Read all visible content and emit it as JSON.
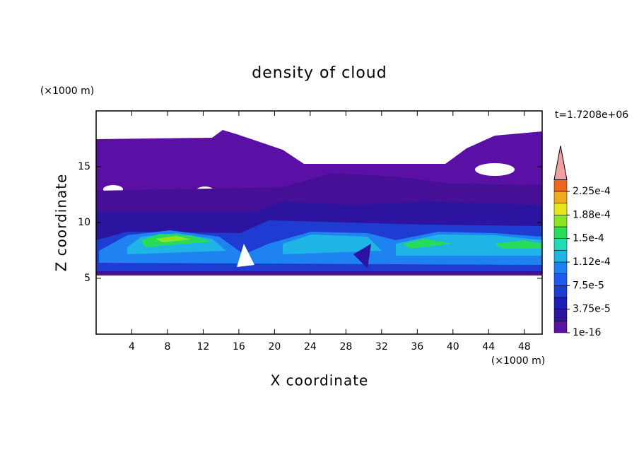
{
  "chart_data": {
    "type": "contour",
    "title": "density of cloud",
    "xlabel": "X coordinate",
    "ylabel": "Z coordinate",
    "x_unit": "(×1000 m)",
    "y_unit": "(×1000 m)",
    "annotation": "t=1.7208e+06",
    "xlim": [
      0,
      50
    ],
    "xticks": [
      4,
      8,
      12,
      16,
      20,
      24,
      28,
      32,
      36,
      40,
      44,
      48
    ],
    "ylim": [
      0,
      20
    ],
    "yticks": [
      5,
      10,
      15
    ],
    "colorbar": {
      "levels": [
        {
          "value": 1e-16,
          "label": "1e-16"
        },
        {
          "value": 3.75e-05,
          "label": "3.75e-5"
        },
        {
          "value": 7.5e-05,
          "label": "7.5e-5"
        },
        {
          "value": 0.000112,
          "label": "1.12e-4"
        },
        {
          "value": 0.00015,
          "label": "1.5e-4"
        },
        {
          "value": 0.000188,
          "label": "1.88e-4"
        },
        {
          "value": 0.000225,
          "label": "2.25e-4"
        }
      ],
      "colors": [
        "#5a0fa5",
        "#2d14a0",
        "#1e1eb4",
        "#1e3cd2",
        "#1e5af0",
        "#1e82f0",
        "#1eb4e6",
        "#1edcb4",
        "#28dc5a",
        "#8ce61e",
        "#e6e61e",
        "#f0aa1e",
        "#f0641e"
      ],
      "extend_color": "#f0a0a0"
    }
  }
}
